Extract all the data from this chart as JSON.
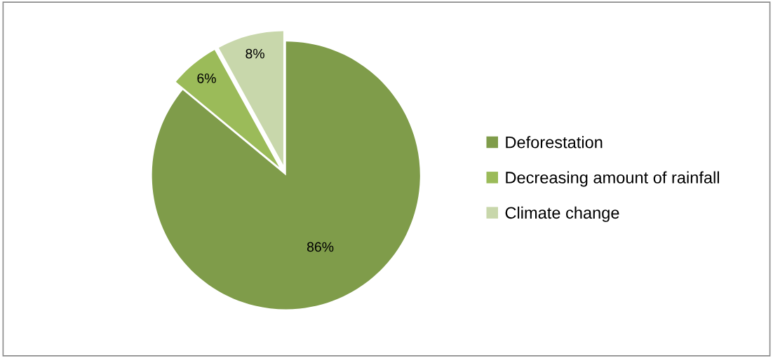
{
  "chart_data": {
    "type": "pie",
    "categories": [
      "Deforestation",
      "Decreasing amount of rainfall",
      "Climate change"
    ],
    "values": [
      86,
      6,
      8
    ],
    "value_labels": [
      "86%",
      "6%",
      "8%"
    ],
    "colors": [
      "#7f9c4a",
      "#9bbb59",
      "#c8d7ab"
    ],
    "legend": "right"
  }
}
